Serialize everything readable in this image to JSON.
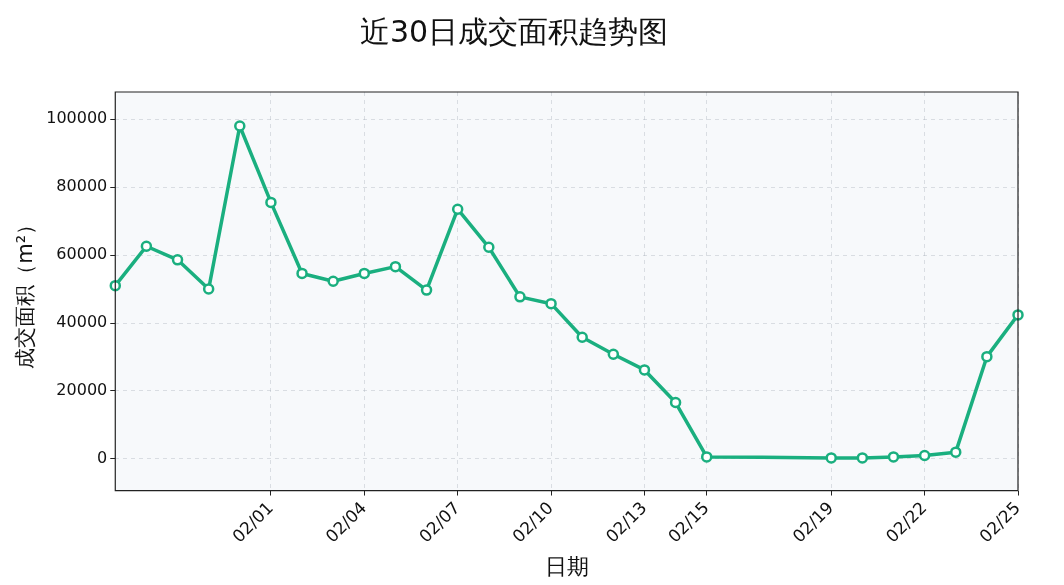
{
  "chart_data": {
    "type": "line",
    "title": "近30日成交面积趋势图",
    "xlabel": "日期",
    "ylabel": "成交面积（m²）",
    "x": [
      "--01-27",
      "--01-28",
      "--01-29",
      "--01-30",
      "--01-31",
      "--02-01",
      "--02-02",
      "--02-03",
      "--02-04",
      "--02-05",
      "--02-06",
      "--02-07",
      "--02-08",
      "--02-09",
      "--02-10",
      "--02-11",
      "--02-12",
      "--02-13",
      "--02-14",
      "--02-15",
      "--02-19",
      "--02-20",
      "--02-21",
      "--02-22",
      "--02-23",
      "--02-24",
      "--02-25"
    ],
    "series": [
      {
        "color": "#1aaf7f",
        "values": [
          51000,
          62600,
          58600,
          50000,
          98000,
          75500,
          54600,
          52300,
          54600,
          56600,
          49700,
          73500,
          62300,
          47700,
          45700,
          35800,
          30800,
          26200,
          16600,
          600,
          300,
          300,
          600,
          1000,
          2000,
          30100,
          42400
        ]
      }
    ],
    "xlim": [
      "--01-27",
      "--02-25"
    ],
    "xticks": [
      {
        "value": "--02-01",
        "label": "02/01"
      },
      {
        "value": "--02-04",
        "label": "02/04"
      },
      {
        "value": "--02-07",
        "label": "02/07"
      },
      {
        "value": "--02-10",
        "label": "02/10"
      },
      {
        "value": "--02-13",
        "label": "02/13"
      },
      {
        "value": "--02-15",
        "label": "02/15"
      },
      {
        "value": "--02-19",
        "label": "02/19"
      },
      {
        "value": "--02-22",
        "label": "02/22"
      },
      {
        "value": "--02-25",
        "label": "02/25"
      }
    ],
    "ylim": [
      -9300,
      108000
    ],
    "yticks": [
      0,
      20000,
      40000,
      60000,
      80000,
      100000
    ],
    "grid": true,
    "legend": false,
    "marker": "circle",
    "line_style": "solid"
  }
}
